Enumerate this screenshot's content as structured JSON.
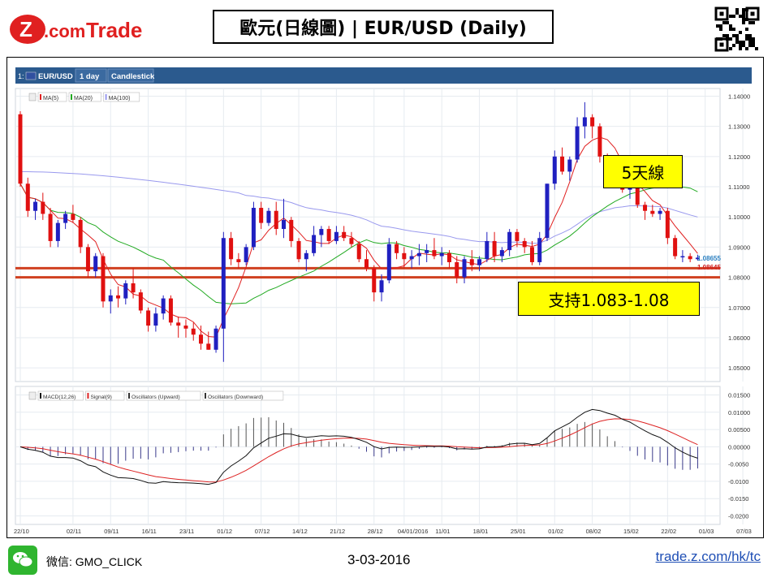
{
  "header": {
    "brand": "Z.com Trade",
    "brand_z": "Z",
    "brand_dotcom": ".com",
    "brand_trade": "Trade",
    "title": "歐元(日線圖) | EUR/USD (Daily)"
  },
  "toolbar": {
    "index": "1:",
    "symbol": "EUR/USD",
    "interval": "1 day",
    "style": "Candlestick"
  },
  "legend_price": [
    "MA(5)",
    "MA(20)",
    "MA(100)"
  ],
  "legend_macd": [
    "MACD(12,26)",
    "Signal(9)",
    "Oscillators (Upward)",
    "Oscillators (Downward)"
  ],
  "colors": {
    "up": "#2020c0",
    "down": "#e01010",
    "ma5": "#e02020",
    "ma20": "#22aa22",
    "ma100": "#9999ee",
    "macd": "#111111",
    "signal": "#dd2222",
    "support_line": "#d04020",
    "annotation_bg": "#ffff00",
    "toolbar_bg": "#2b5a8e"
  },
  "annotations": {
    "ma5_label": "5天線",
    "support_label": "支持1.083-1.08"
  },
  "price_tags": {
    "last_upper": "1.08655",
    "last_lower": "1.08645"
  },
  "footer": {
    "wechat_label": "微信: GMO_CLICK",
    "date": "3-03-2016",
    "link": "trade.z.com/hk/tc"
  },
  "chart_data": {
    "type": "candlestick",
    "price_axis": {
      "ticks": [
        "1.14000",
        "1.13000",
        "1.12000",
        "1.11000",
        "1.10000",
        "1.09000",
        "1.08000",
        "1.07000",
        "1.06000",
        "1.05000"
      ],
      "ylim": [
        1.046,
        1.142
      ]
    },
    "macd_axis": {
      "ticks": [
        "0.01500",
        "0.01000",
        "0.00500",
        "0.00000",
        "-0.0050",
        "-0.0100",
        "-0.0150",
        "-0.0200"
      ],
      "ylim": [
        -0.022,
        0.017
      ]
    },
    "x_labels": [
      "22/10",
      "02/11",
      "09/11",
      "16/11",
      "23/11",
      "01/12",
      "07/12",
      "14/12",
      "21/12",
      "28/12",
      "04/01/2016",
      "11/01",
      "18/01",
      "25/01",
      "01/02",
      "08/02",
      "15/02",
      "22/02",
      "01/03",
      "07/03"
    ],
    "x_label_index": [
      0,
      7,
      12,
      17,
      22,
      27,
      32,
      37,
      42,
      47,
      51,
      56,
      61,
      66,
      71,
      76,
      81,
      86,
      91,
      96
    ],
    "support_levels": [
      1.083,
      1.08
    ],
    "candles": [
      [
        1.134,
        1.135,
        1.11,
        1.111
      ],
      [
        1.111,
        1.113,
        1.1,
        1.102
      ],
      [
        1.102,
        1.106,
        1.099,
        1.105
      ],
      [
        1.105,
        1.108,
        1.099,
        1.101
      ],
      [
        1.101,
        1.103,
        1.09,
        1.092
      ],
      [
        1.092,
        1.099,
        1.09,
        1.098
      ],
      [
        1.098,
        1.102,
        1.096,
        1.101
      ],
      [
        1.101,
        1.104,
        1.098,
        1.099
      ],
      [
        1.099,
        1.1,
        1.088,
        1.09
      ],
      [
        1.09,
        1.091,
        1.08,
        1.082
      ],
      [
        1.082,
        1.088,
        1.08,
        1.087
      ],
      [
        1.087,
        1.088,
        1.07,
        1.072
      ],
      [
        1.072,
        1.076,
        1.068,
        1.074
      ],
      [
        1.074,
        1.077,
        1.07,
        1.073
      ],
      [
        1.073,
        1.079,
        1.071,
        1.078
      ],
      [
        1.078,
        1.083,
        1.073,
        1.075
      ],
      [
        1.075,
        1.076,
        1.068,
        1.069
      ],
      [
        1.069,
        1.07,
        1.062,
        1.064
      ],
      [
        1.064,
        1.07,
        1.062,
        1.068
      ],
      [
        1.068,
        1.074,
        1.066,
        1.073
      ],
      [
        1.073,
        1.074,
        1.064,
        1.065
      ],
      [
        1.065,
        1.067,
        1.06,
        1.064
      ],
      [
        1.064,
        1.066,
        1.06,
        1.063
      ],
      [
        1.063,
        1.065,
        1.059,
        1.061
      ],
      [
        1.061,
        1.064,
        1.056,
        1.058
      ],
      [
        1.058,
        1.062,
        1.056,
        1.056
      ],
      [
        1.056,
        1.064,
        1.055,
        1.063
      ],
      [
        1.063,
        1.095,
        1.052,
        1.093
      ],
      [
        1.093,
        1.095,
        1.084,
        1.086
      ],
      [
        1.086,
        1.088,
        1.083,
        1.085
      ],
      [
        1.085,
        1.091,
        1.084,
        1.09
      ],
      [
        1.09,
        1.105,
        1.089,
        1.103
      ],
      [
        1.103,
        1.105,
        1.096,
        1.098
      ],
      [
        1.098,
        1.103,
        1.097,
        1.102
      ],
      [
        1.102,
        1.105,
        1.094,
        1.096
      ],
      [
        1.096,
        1.106,
        1.093,
        1.099
      ],
      [
        1.099,
        1.1,
        1.09,
        1.092
      ],
      [
        1.092,
        1.093,
        1.085,
        1.086
      ],
      [
        1.086,
        1.089,
        1.082,
        1.088
      ],
      [
        1.088,
        1.097,
        1.087,
        1.094
      ],
      [
        1.094,
        1.097,
        1.09,
        1.096
      ],
      [
        1.096,
        1.097,
        1.091,
        1.092
      ],
      [
        1.092,
        1.097,
        1.091,
        1.095
      ],
      [
        1.095,
        1.097,
        1.092,
        1.093
      ],
      [
        1.093,
        1.095,
        1.09,
        1.091
      ],
      [
        1.091,
        1.092,
        1.085,
        1.086
      ],
      [
        1.086,
        1.089,
        1.082,
        1.083
      ],
      [
        1.083,
        1.084,
        1.072,
        1.075
      ],
      [
        1.075,
        1.081,
        1.072,
        1.079
      ],
      [
        1.079,
        1.093,
        1.078,
        1.091
      ],
      [
        1.091,
        1.092,
        1.086,
        1.088
      ],
      [
        1.088,
        1.09,
        1.083,
        1.086
      ],
      [
        1.086,
        1.089,
        1.083,
        1.087
      ],
      [
        1.087,
        1.091,
        1.084,
        1.088
      ],
      [
        1.088,
        1.091,
        1.085,
        1.089
      ],
      [
        1.089,
        1.093,
        1.086,
        1.087
      ],
      [
        1.087,
        1.09,
        1.084,
        1.088
      ],
      [
        1.088,
        1.089,
        1.083,
        1.085
      ],
      [
        1.085,
        1.087,
        1.078,
        1.08
      ],
      [
        1.08,
        1.087,
        1.078,
        1.086
      ],
      [
        1.086,
        1.089,
        1.082,
        1.084
      ],
      [
        1.084,
        1.087,
        1.082,
        1.086
      ],
      [
        1.086,
        1.095,
        1.085,
        1.092
      ],
      [
        1.092,
        1.095,
        1.085,
        1.087
      ],
      [
        1.087,
        1.09,
        1.085,
        1.089
      ],
      [
        1.089,
        1.096,
        1.087,
        1.095
      ],
      [
        1.095,
        1.096,
        1.09,
        1.092
      ],
      [
        1.092,
        1.093,
        1.088,
        1.09
      ],
      [
        1.09,
        1.092,
        1.084,
        1.085
      ],
      [
        1.085,
        1.095,
        1.084,
        1.093
      ],
      [
        1.093,
        1.111,
        1.092,
        1.111
      ],
      [
        1.111,
        1.122,
        1.109,
        1.12
      ],
      [
        1.12,
        1.123,
        1.114,
        1.115
      ],
      [
        1.115,
        1.12,
        1.112,
        1.119
      ],
      [
        1.119,
        1.133,
        1.118,
        1.13
      ],
      [
        1.13,
        1.138,
        1.126,
        1.133
      ],
      [
        1.133,
        1.134,
        1.126,
        1.13
      ],
      [
        1.13,
        1.131,
        1.118,
        1.12
      ],
      [
        1.12,
        1.121,
        1.113,
        1.115
      ],
      [
        1.115,
        1.118,
        1.112,
        1.116
      ],
      [
        1.116,
        1.117,
        1.108,
        1.109
      ],
      [
        1.109,
        1.112,
        1.106,
        1.111
      ],
      [
        1.111,
        1.113,
        1.103,
        1.104
      ],
      [
        1.104,
        1.105,
        1.099,
        1.102
      ],
      [
        1.102,
        1.104,
        1.1,
        1.101
      ],
      [
        1.101,
        1.103,
        1.099,
        1.102
      ],
      [
        1.102,
        1.103,
        1.091,
        1.093
      ],
      [
        1.093,
        1.094,
        1.086,
        1.087
      ],
      [
        1.087,
        1.089,
        1.085,
        1.087
      ],
      [
        1.087,
        1.088,
        1.085,
        1.086
      ],
      [
        1.086,
        1.0875,
        1.0855,
        1.0865
      ]
    ]
  }
}
